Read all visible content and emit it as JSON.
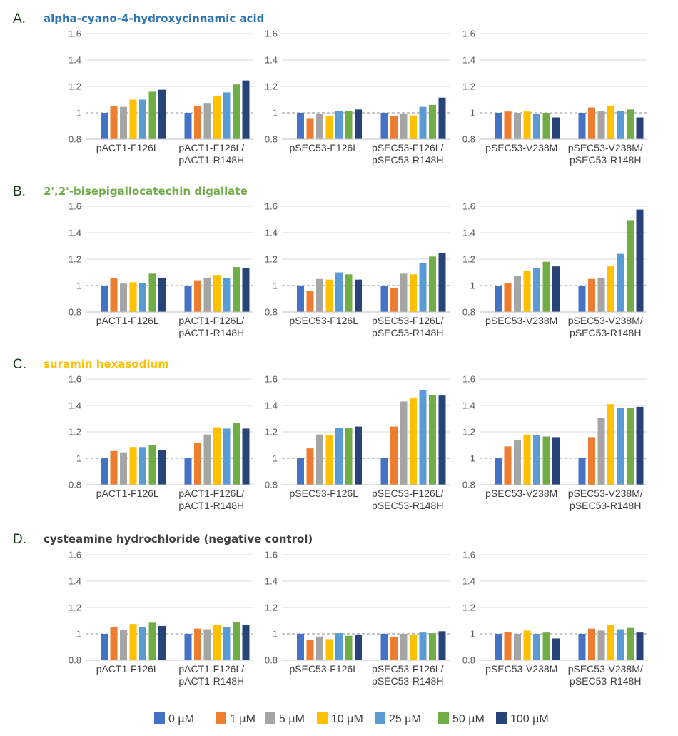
{
  "colors": [
    "#4472C4",
    "#ED7D31",
    "#A5A5A5",
    "#FFC000",
    "#5B9BD5",
    "#70AD47",
    "#264478"
  ],
  "legend": [
    "0 µM",
    "1 µM",
    "5 µM",
    "10 µM",
    "25 µM",
    "50 µM",
    "100 µM"
  ],
  "panels": [
    {
      "label": "A.",
      "title": "alpha-cyano-4-hydroxycinnamic acid",
      "title_color": "#2E75B6"
    },
    {
      "label": "B.",
      "title": "2',2'-bisepigallocatechin digallate",
      "title_color": "#70AD47"
    },
    {
      "label": "C.",
      "title": "suramin hexasodium",
      "title_color": "#FFC000"
    },
    {
      "label": "D.",
      "title": "cysteamine hydrochloride (negative control)",
      "title_color": "#404040"
    }
  ],
  "chart_data": [
    {
      "type": "bar",
      "panel": "A.",
      "ylim": [
        0.8,
        1.6
      ],
      "yticks": [
        "0.8",
        "1",
        "1.2",
        "1.4",
        "1.6"
      ],
      "reference_line": 1,
      "categories": [
        [
          "pACT1-F126L"
        ],
        [
          "pACT1-F126L/",
          "pACT1-R148H"
        ]
      ],
      "values": [
        [
          1.0,
          1.05,
          1.045,
          1.1,
          1.1,
          1.16,
          1.175
        ],
        [
          1.0,
          1.05,
          1.075,
          1.13,
          1.155,
          1.215,
          1.245
        ]
      ]
    },
    {
      "type": "bar",
      "panel": "A.",
      "ylim": [
        0.8,
        1.6
      ],
      "yticks": [
        "0.8",
        "1",
        "1.2",
        "1.4",
        "1.6"
      ],
      "reference_line": 1,
      "categories": [
        [
          "pSEC53-F126L"
        ],
        [
          "pSEC53-F126L/",
          "pSEC53-R148H"
        ]
      ],
      "values": [
        [
          1.0,
          0.96,
          0.995,
          0.975,
          1.015,
          1.015,
          1.025
        ],
        [
          1.0,
          0.975,
          0.995,
          0.98,
          1.045,
          1.06,
          1.115
        ]
      ]
    },
    {
      "type": "bar",
      "panel": "A.",
      "ylim": [
        0.8,
        1.6
      ],
      "yticks": [
        "0.8",
        "1",
        "1.2",
        "1.4",
        "1.6"
      ],
      "reference_line": 1,
      "categories": [
        [
          "pSEC53-V238M"
        ],
        [
          "pSEC53-V238M/",
          "pSEC53-R148H"
        ]
      ],
      "values": [
        [
          1.0,
          1.01,
          1.0,
          1.01,
          0.995,
          1.0,
          0.965
        ],
        [
          1.0,
          1.04,
          1.015,
          1.055,
          1.015,
          1.025,
          0.965
        ]
      ]
    },
    {
      "type": "bar",
      "panel": "B.",
      "ylim": [
        0.8,
        1.6
      ],
      "yticks": [
        "0.8",
        "1",
        "1.2",
        "1.4",
        "1.6"
      ],
      "reference_line": 1,
      "categories": [
        [
          "pACT1-F126L"
        ],
        [
          "pACT1-F126L/",
          "pACT1-R148H"
        ]
      ],
      "values": [
        [
          1.0,
          1.055,
          1.015,
          1.025,
          1.02,
          1.09,
          1.06
        ],
        [
          1.0,
          1.04,
          1.06,
          1.08,
          1.055,
          1.14,
          1.13
        ]
      ]
    },
    {
      "type": "bar",
      "panel": "B.",
      "ylim": [
        0.8,
        1.6
      ],
      "yticks": [
        "0.8",
        "1",
        "1.2",
        "1.4",
        "1.6"
      ],
      "reference_line": 1,
      "categories": [
        [
          "pSEC53-F126L"
        ],
        [
          "pSEC53-F126L/",
          "pSEC53-R148H"
        ]
      ],
      "values": [
        [
          1.0,
          0.96,
          1.05,
          1.045,
          1.1,
          1.085,
          1.045
        ],
        [
          1.0,
          0.98,
          1.09,
          1.085,
          1.17,
          1.22,
          1.245
        ]
      ]
    },
    {
      "type": "bar",
      "panel": "B.",
      "ylim": [
        0.8,
        1.6
      ],
      "yticks": [
        "0.8",
        "1",
        "1.2",
        "1.4",
        "1.6"
      ],
      "reference_line": 1,
      "categories": [
        [
          "pSEC53-V238M"
        ],
        [
          "pSEC53-V238M/",
          "pSEC53-R148H"
        ]
      ],
      "values": [
        [
          1.0,
          1.02,
          1.07,
          1.11,
          1.13,
          1.18,
          1.145
        ],
        [
          1.0,
          1.05,
          1.06,
          1.145,
          1.24,
          1.495,
          1.575
        ]
      ]
    },
    {
      "type": "bar",
      "panel": "C.",
      "ylim": [
        0.8,
        1.6
      ],
      "yticks": [
        "0.8",
        "1",
        "1.2",
        "1.4",
        "1.6"
      ],
      "reference_line": 1,
      "categories": [
        [
          "pACT1-F126L"
        ],
        [
          "pACT1-F126L/",
          "pACT1-R148H"
        ]
      ],
      "values": [
        [
          1.0,
          1.055,
          1.045,
          1.085,
          1.085,
          1.1,
          1.065
        ],
        [
          1.0,
          1.115,
          1.18,
          1.235,
          1.225,
          1.265,
          1.225
        ]
      ]
    },
    {
      "type": "bar",
      "panel": "C.",
      "ylim": [
        0.8,
        1.6
      ],
      "yticks": [
        "0.8",
        "1",
        "1.2",
        "1.4",
        "1.6"
      ],
      "reference_line": 1,
      "categories": [
        [
          "pSEC53-F126L"
        ],
        [
          "pSEC53-F126L/",
          "pSEC53-R148H"
        ]
      ],
      "values": [
        [
          1.0,
          1.075,
          1.18,
          1.175,
          1.23,
          1.23,
          1.24
        ],
        [
          1.0,
          1.24,
          1.43,
          1.46,
          1.515,
          1.48,
          1.475
        ]
      ]
    },
    {
      "type": "bar",
      "panel": "C.",
      "ylim": [
        0.8,
        1.6
      ],
      "yticks": [
        "0.8",
        "1",
        "1.2",
        "1.4",
        "1.6"
      ],
      "reference_line": 1,
      "categories": [
        [
          "pSEC53-V238M"
        ],
        [
          "pSEC53-V238M/",
          "pSEC53-R148H"
        ]
      ],
      "values": [
        [
          1.0,
          1.09,
          1.14,
          1.18,
          1.175,
          1.165,
          1.16
        ],
        [
          1.0,
          1.16,
          1.305,
          1.41,
          1.38,
          1.38,
          1.39
        ]
      ]
    },
    {
      "type": "bar",
      "panel": "D.",
      "ylim": [
        0.8,
        1.6
      ],
      "yticks": [
        "0.8",
        "1",
        "1.2",
        "1.4",
        "1.6"
      ],
      "reference_line": 1,
      "categories": [
        [
          "pACT1-F126L"
        ],
        [
          "pACT1-F126L/",
          "pACT1-R148H"
        ]
      ],
      "values": [
        [
          1.0,
          1.05,
          1.03,
          1.075,
          1.05,
          1.085,
          1.06
        ],
        [
          1.0,
          1.04,
          1.035,
          1.065,
          1.05,
          1.09,
          1.07
        ]
      ]
    },
    {
      "type": "bar",
      "panel": "D.",
      "ylim": [
        0.8,
        1.6
      ],
      "yticks": [
        "0.8",
        "1",
        "1.2",
        "1.4",
        "1.6"
      ],
      "reference_line": 1,
      "categories": [
        [
          "pSEC53-F126L"
        ],
        [
          "pSEC53-F126L/",
          "pSEC53-R148H"
        ]
      ],
      "values": [
        [
          1.0,
          0.955,
          0.98,
          0.96,
          1.005,
          0.985,
          0.995
        ],
        [
          1.0,
          0.975,
          1.0,
          0.995,
          1.01,
          1.005,
          1.02
        ]
      ]
    },
    {
      "type": "bar",
      "panel": "D.",
      "ylim": [
        0.8,
        1.6
      ],
      "yticks": [
        "0.8",
        "1",
        "1.2",
        "1.4",
        "1.6"
      ],
      "reference_line": 1,
      "categories": [
        [
          "pSEC53-V238M"
        ],
        [
          "pSEC53-V238M/",
          "pSEC53-R148H"
        ]
      ],
      "values": [
        [
          1.0,
          1.015,
          1.0,
          1.025,
          1.0,
          1.01,
          0.965
        ],
        [
          1.0,
          1.04,
          1.025,
          1.07,
          1.035,
          1.045,
          1.01
        ]
      ]
    }
  ]
}
